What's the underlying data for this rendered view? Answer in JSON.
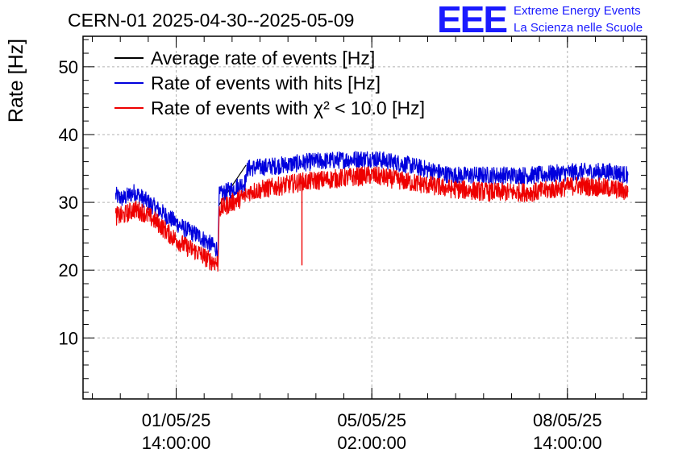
{
  "chart_data": {
    "type": "line",
    "title": "CERN-01 2025-04-30--2025-05-09",
    "ylabel": "Rate [Hz]",
    "xlabel": "",
    "ylim": [
      1,
      54.5
    ],
    "yticks": [
      10,
      20,
      30,
      40,
      50
    ],
    "x_time_range": [
      "2025-04-29T22:00:00",
      "2025-05-10T00:00:00"
    ],
    "xticks": [
      {
        "time": "2025-05-01T14:00:00",
        "line1": "01/05/25",
        "line2": "14:00:00"
      },
      {
        "time": "2025-05-05T02:00:00",
        "line1": "05/05/25",
        "line2": "02:00:00"
      },
      {
        "time": "2025-05-08T14:00:00",
        "line1": "08/05/25",
        "line2": "14:00:00"
      }
    ],
    "grid": true,
    "legend_position": "top-left",
    "series": [
      {
        "name": "Average rate of events [Hz]",
        "color": "#000000",
        "noise": 0,
        "points": [
          [
            "2025-05-02T08:10:00",
            29.5
          ],
          [
            "2025-05-02T20:00:00",
            35.5
          ]
        ]
      },
      {
        "name": "Rate of events with hits [Hz]",
        "color": "#0000dd",
        "noise": 1.3,
        "points": [
          [
            "2025-04-30T12:00:00",
            31.0
          ],
          [
            "2025-04-30T15:00:00",
            30.5
          ],
          [
            "2025-04-30T20:00:00",
            31.5
          ],
          [
            "2025-05-01T00:00:00",
            30.5
          ],
          [
            "2025-05-01T06:00:00",
            29.0
          ],
          [
            "2025-05-01T12:00:00",
            27.5
          ],
          [
            "2025-05-01T18:00:00",
            26.0
          ],
          [
            "2025-05-02T00:00:00",
            25.0
          ],
          [
            "2025-05-02T04:00:00",
            24.0
          ],
          [
            "2025-05-02T08:00:00",
            23.0
          ],
          [
            "2025-05-02T08:30:00",
            31.0
          ],
          [
            "2025-05-02T20:00:00",
            33.0
          ],
          [
            "2025-05-02T20:30:00",
            35.0
          ],
          [
            "2025-05-03T12:00:00",
            35.5
          ],
          [
            "2025-05-04T00:00:00",
            36.0
          ],
          [
            "2025-05-05T02:00:00",
            36.5
          ],
          [
            "2025-05-05T18:00:00",
            35.5
          ],
          [
            "2025-05-06T12:00:00",
            34.0
          ],
          [
            "2025-05-07T06:00:00",
            34.0
          ],
          [
            "2025-05-08T00:00:00",
            34.0
          ],
          [
            "2025-05-08T18:00:00",
            34.5
          ],
          [
            "2025-05-09T10:00:00",
            34.5
          ],
          [
            "2025-05-09T16:00:00",
            34.0
          ]
        ]
      },
      {
        "name": "Rate of events with χ² < 10.0 [Hz]",
        "color": "#ee0000",
        "noise": 1.4,
        "points": [
          [
            "2025-04-30T12:00:00",
            28.0
          ],
          [
            "2025-04-30T15:00:00",
            28.0
          ],
          [
            "2025-04-30T20:00:00",
            29.0
          ],
          [
            "2025-05-01T00:00:00",
            28.5
          ],
          [
            "2025-05-01T06:00:00",
            27.0
          ],
          [
            "2025-05-01T12:00:00",
            25.0
          ],
          [
            "2025-05-01T18:00:00",
            23.5
          ],
          [
            "2025-05-02T00:00:00",
            22.5
          ],
          [
            "2025-05-02T04:00:00",
            21.5
          ],
          [
            "2025-05-02T08:00:00",
            21.0
          ],
          [
            "2025-05-02T08:30:00",
            29.0
          ],
          [
            "2025-05-02T20:00:00",
            31.0
          ],
          [
            "2025-05-02T20:30:00",
            31.5
          ],
          [
            "2025-05-03T12:00:00",
            32.5
          ],
          [
            "2025-05-03T20:00:00",
            33.0
          ],
          [
            "2025-05-05T02:00:00",
            34.0
          ],
          [
            "2025-05-05T18:00:00",
            33.0
          ],
          [
            "2025-05-06T12:00:00",
            32.0
          ],
          [
            "2025-05-07T06:00:00",
            31.5
          ],
          [
            "2025-05-08T00:00:00",
            31.5
          ],
          [
            "2025-05-08T18:00:00",
            32.5
          ],
          [
            "2025-05-09T10:00:00",
            32.0
          ],
          [
            "2025-05-09T16:00:00",
            31.5
          ]
        ],
        "spikes": [
          [
            "2025-05-03T20:00:00",
            20.7
          ]
        ]
      }
    ]
  },
  "logo": {
    "mark": "EEE",
    "line1": "Extreme Energy Events",
    "line2": "La Scienza nelle Scuole",
    "color": "#1a1aff"
  }
}
